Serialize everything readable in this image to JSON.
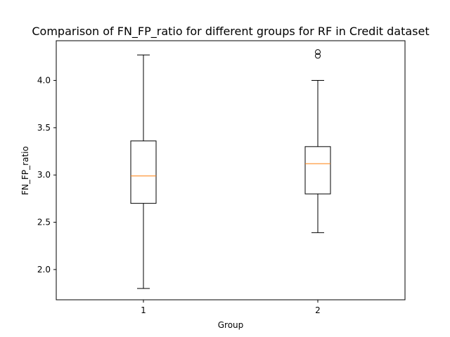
{
  "chart_data": {
    "type": "box",
    "title": "Comparison of FN_FP_ratio for different groups for RF in Credit dataset",
    "xlabel": "Group",
    "ylabel": "FN_FP_ratio",
    "categories": [
      "1",
      "2"
    ],
    "xlim": [
      0.5,
      2.5
    ],
    "ylim": [
      1.68,
      4.42
    ],
    "yticks": [
      2.0,
      2.5,
      3.0,
      3.5,
      4.0
    ],
    "ytick_labels": [
      "2.0",
      "2.5",
      "3.0",
      "3.5",
      "4.0"
    ],
    "boxes": [
      {
        "group": "1",
        "whislo": 1.8,
        "q1": 2.7,
        "med": 2.99,
        "q3": 3.36,
        "whishi": 4.27,
        "fliers": []
      },
      {
        "group": "2",
        "whislo": 2.39,
        "q1": 2.8,
        "med": 3.12,
        "q3": 3.3,
        "whishi": 4.0,
        "fliers": [
          4.26,
          4.3
        ]
      }
    ],
    "grid": false,
    "colors": {
      "box": "#000000",
      "median": "#ff7f0e",
      "whisker": "#000000",
      "flier": "#000000"
    }
  }
}
